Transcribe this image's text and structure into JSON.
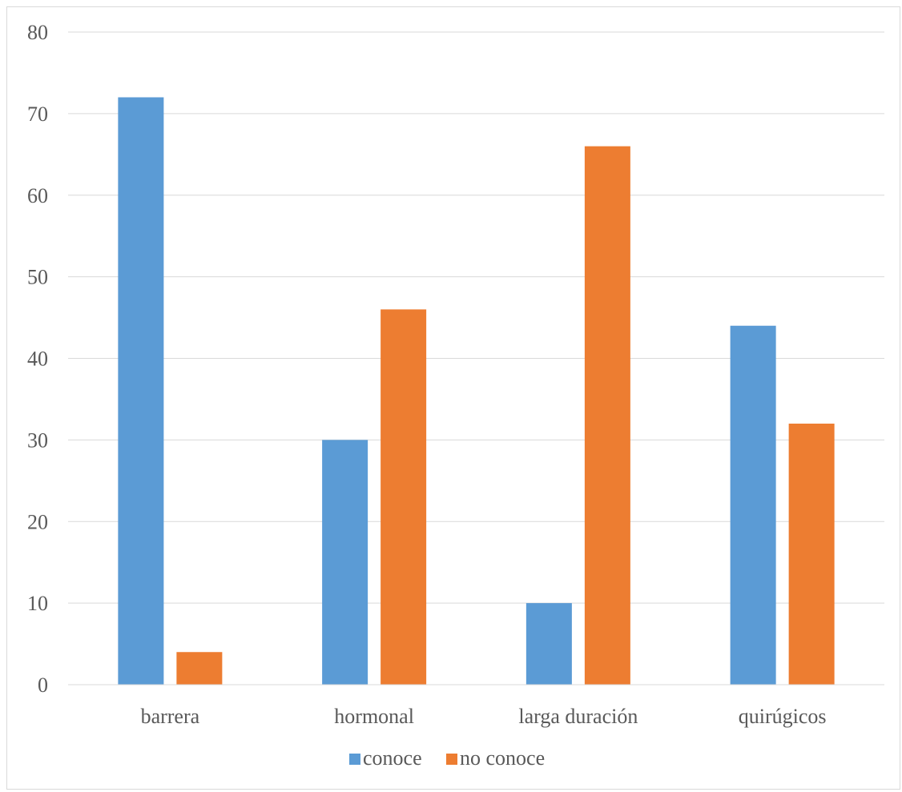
{
  "chart_data": {
    "type": "bar",
    "categories": [
      "barrera",
      "hormonal",
      "larga duración",
      "quirúgicos"
    ],
    "series": [
      {
        "name": "conoce",
        "values": [
          72,
          30,
          10,
          44
        ],
        "color": "#5b9bd5"
      },
      {
        "name": "no conoce",
        "values": [
          4,
          46,
          66,
          32
        ],
        "color": "#ed7d31"
      }
    ],
    "ylim": [
      0,
      80
    ],
    "yticks": [
      0,
      10,
      20,
      30,
      40,
      50,
      60,
      70,
      80
    ],
    "grid": true,
    "legend_position": "bottom",
    "gridline_color": "#d9d9d9"
  }
}
